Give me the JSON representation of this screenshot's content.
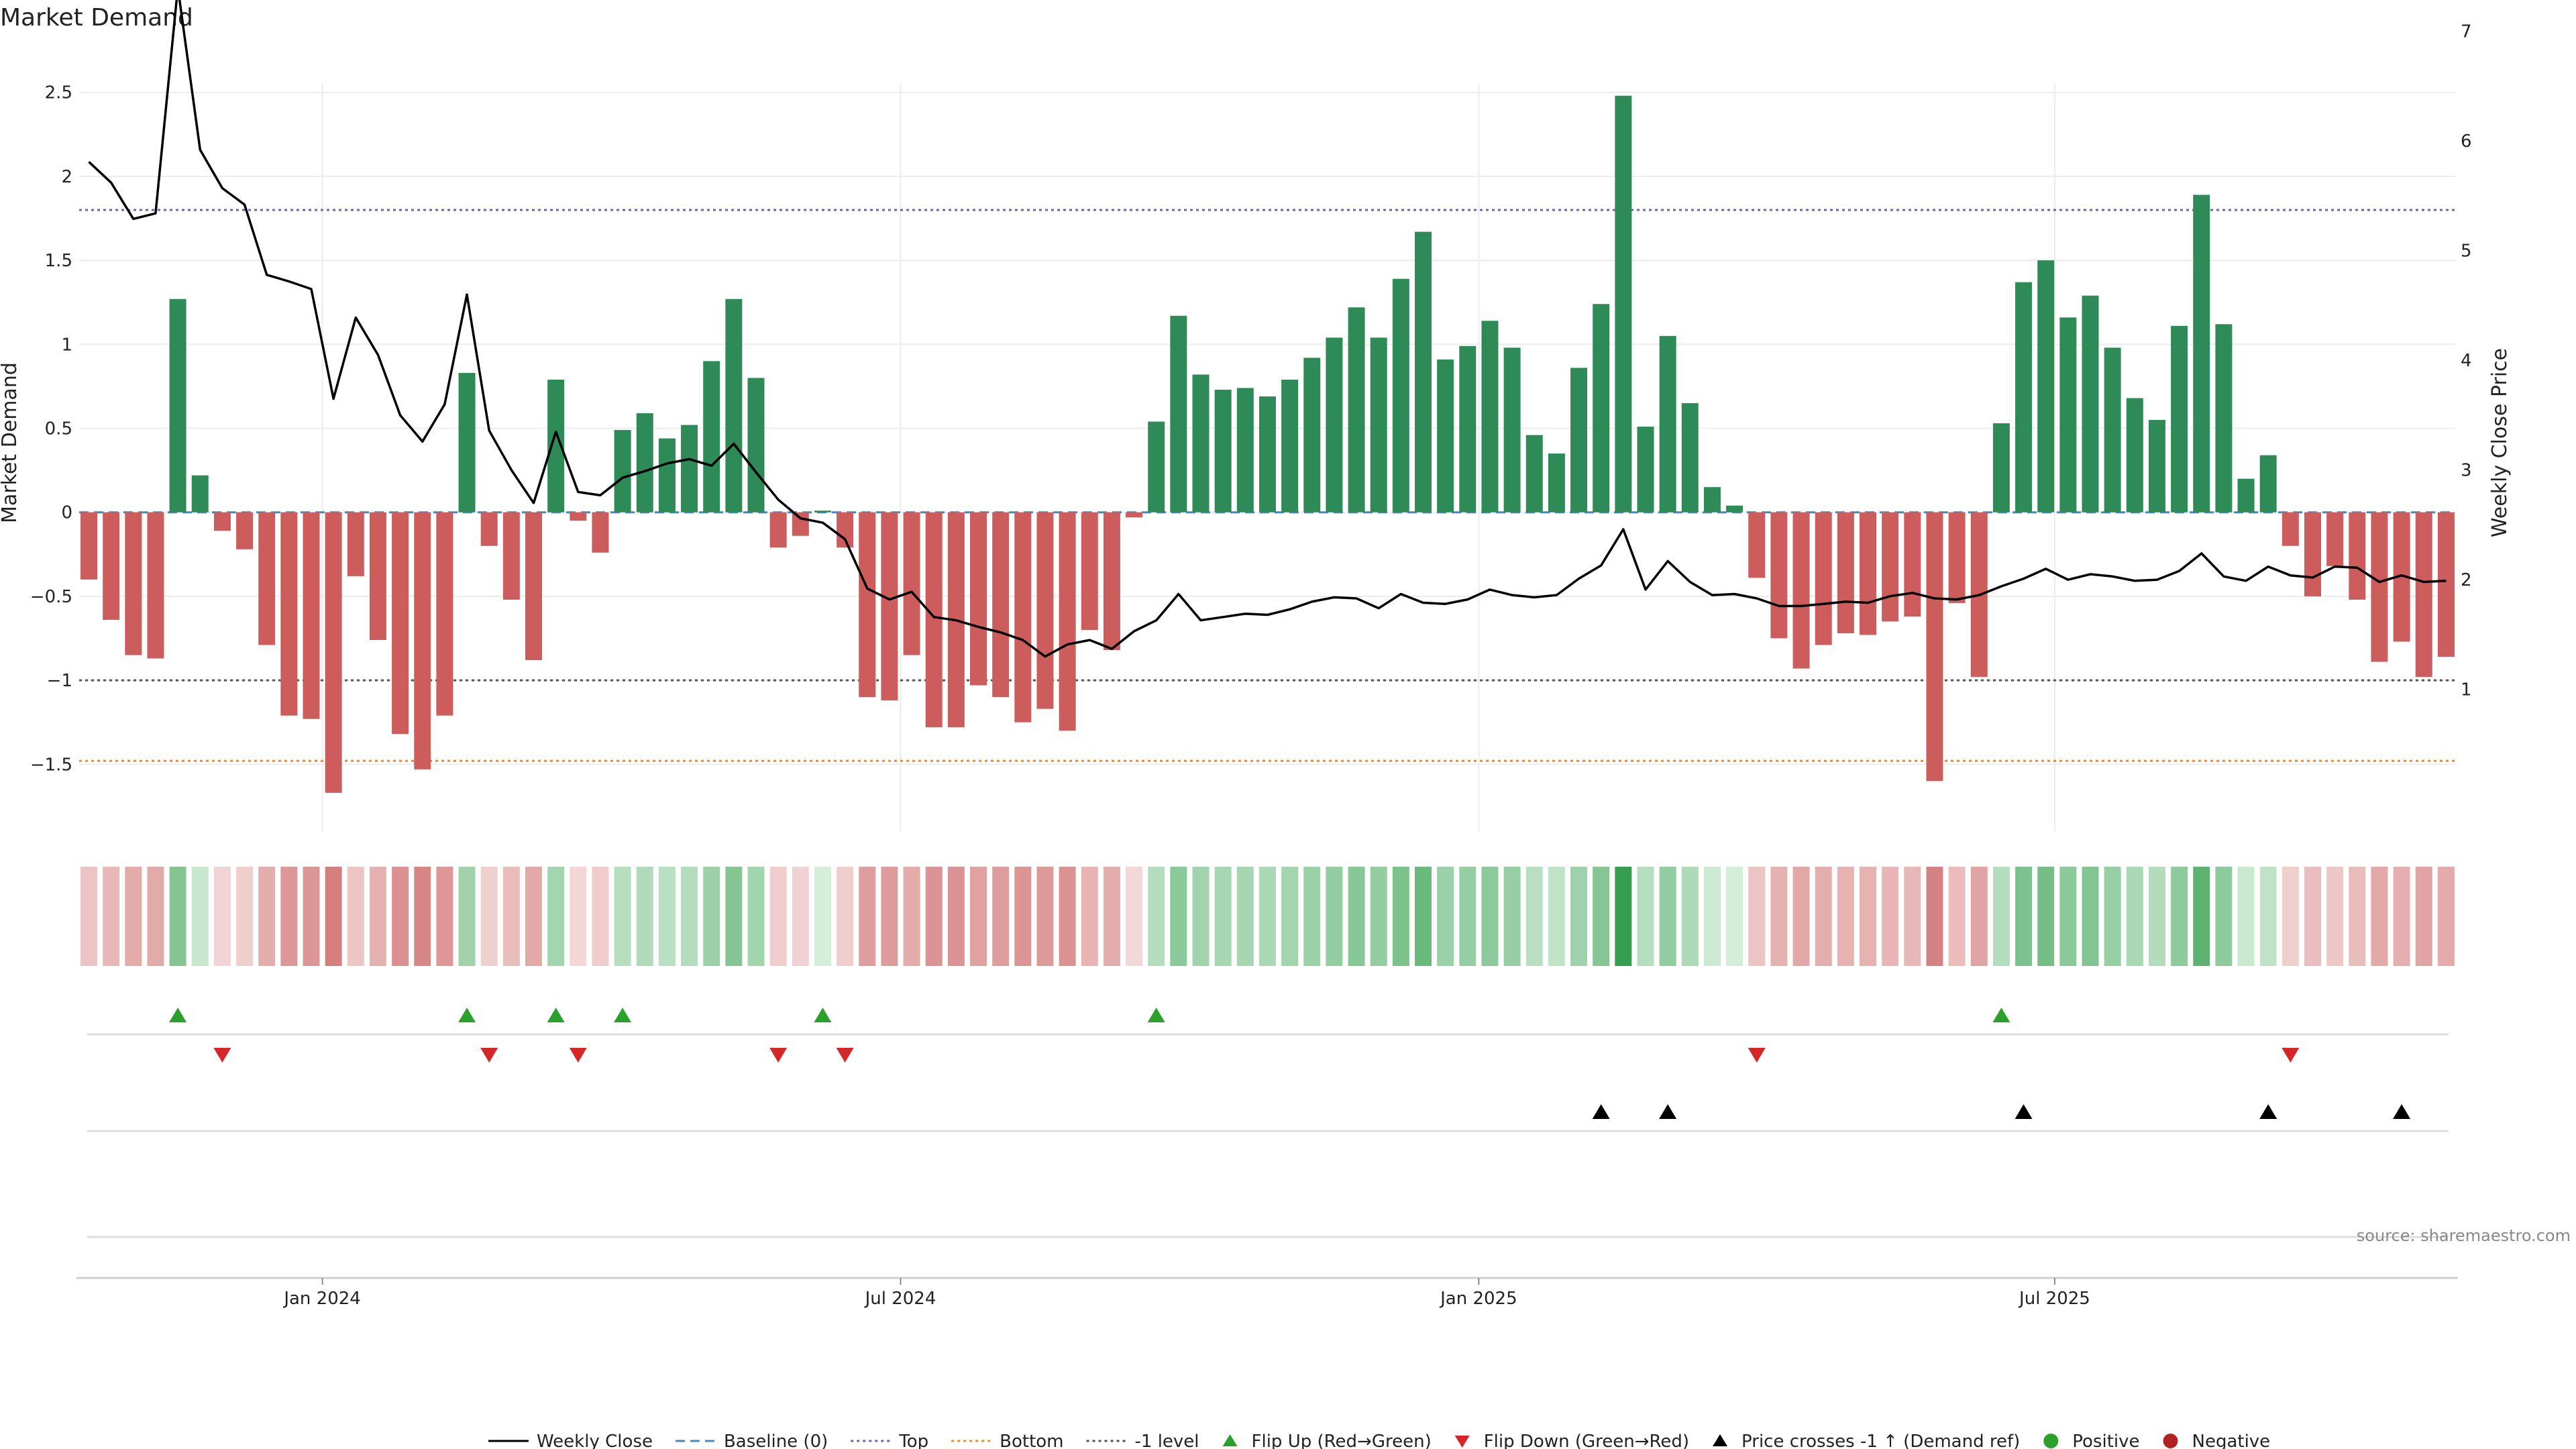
{
  "title": "Market Demand",
  "source_text": "source: sharemaestro.com",
  "colors": {
    "green": "#2e8b57",
    "red": "#cd5c5c",
    "price_line": "#000000",
    "top_line": "#6a64b8",
    "bottom_line": "#f08a24",
    "neg1_line": "#555555",
    "baseline": "#4b86b4",
    "flip_up": "#2ca02c",
    "flip_down": "#d62728",
    "cross_marker": "#000000",
    "positive_dot": "#2ca02c",
    "negative_dot": "#b22222"
  },
  "chart_data": {
    "type": "bar",
    "title": "Market Demand",
    "ylabel": "Market Demand",
    "y2label": "Weekly Close Price",
    "ylim": [
      -1.92,
      2.5
    ],
    "y2lim": [
      0.7,
      7.4
    ],
    "yticks": [
      2.5,
      2,
      1.5,
      1,
      0.5,
      0,
      -0.5,
      -1,
      -1.5
    ],
    "ytick_labels": [
      "2.5",
      "2",
      "1.5",
      "1",
      "0.5",
      "0",
      "−0.5",
      "−1",
      "−1.5"
    ],
    "y2ticks": [
      7,
      6,
      5,
      4,
      3,
      2,
      1
    ],
    "x_tick_labels": [
      {
        "label": "Jan 2024",
        "week": 10.5
      },
      {
        "label": "Jul 2024",
        "week": 36.5
      },
      {
        "label": "Jan 2025",
        "week": 62.5
      },
      {
        "label": "Jul 2025",
        "week": 88.4
      }
    ],
    "reference_lines": {
      "top": 1.8,
      "bottom": -1.48,
      "minus_one": -1.0,
      "baseline": 0
    },
    "demand": [
      -0.4,
      -0.64,
      -0.85,
      -0.87,
      1.27,
      0.22,
      -0.11,
      -0.22,
      -0.79,
      -1.21,
      -1.23,
      -1.67,
      -0.38,
      -0.76,
      -1.32,
      -1.53,
      -1.21,
      0.83,
      -0.2,
      -0.52,
      -0.88,
      0.79,
      -0.05,
      -0.24,
      0.49,
      0.59,
      0.44,
      0.52,
      0.9,
      1.27,
      0.8,
      -0.21,
      -0.14,
      0.01,
      -0.21,
      -1.1,
      -1.12,
      -0.85,
      -1.28,
      -1.28,
      -1.03,
      -1.1,
      -1.25,
      -1.17,
      -1.3,
      -0.7,
      -0.82,
      -0.03,
      0.54,
      1.17,
      0.82,
      0.73,
      0.74,
      0.69,
      0.79,
      0.92,
      1.04,
      1.22,
      1.04,
      1.39,
      1.67,
      0.91,
      0.99,
      1.14,
      0.98,
      0.46,
      0.35,
      0.86,
      1.24,
      2.48,
      0.51,
      1.05,
      0.65,
      0.15,
      0.04,
      -0.39,
      -0.75,
      -0.93,
      -0.79,
      -0.72,
      -0.73,
      -0.65,
      -0.62,
      -1.6,
      -0.54,
      -0.98,
      0.53,
      1.37,
      1.5,
      1.16,
      1.29,
      0.98,
      0.68,
      0.55,
      1.11,
      1.89,
      1.12,
      0.2,
      0.34,
      -0.2,
      -0.5,
      -0.32,
      -0.52,
      -0.89,
      -0.77,
      -0.98,
      -0.86
    ],
    "price": [
      5.81,
      5.62,
      5.29,
      5.34,
      7.4,
      5.92,
      5.57,
      5.42,
      4.78,
      4.72,
      4.65,
      3.65,
      4.39,
      4.05,
      3.5,
      3.26,
      3.6,
      4.6,
      3.36,
      3.0,
      2.7,
      3.35,
      2.8,
      2.77,
      2.93,
      2.99,
      3.06,
      3.1,
      3.04,
      3.24,
      2.98,
      2.73,
      2.56,
      2.52,
      2.37,
      1.92,
      1.82,
      1.89,
      1.66,
      1.63,
      1.57,
      1.52,
      1.45,
      1.3,
      1.41,
      1.45,
      1.37,
      1.53,
      1.63,
      1.87,
      1.63,
      1.66,
      1.69,
      1.68,
      1.73,
      1.8,
      1.84,
      1.83,
      1.74,
      1.87,
      1.79,
      1.78,
      1.82,
      1.91,
      1.86,
      1.84,
      1.86,
      2.01,
      2.13,
      2.46,
      1.91,
      2.17,
      1.98,
      1.86,
      1.87,
      1.83,
      1.76,
      1.76,
      1.78,
      1.8,
      1.79,
      1.85,
      1.88,
      1.83,
      1.82,
      1.86,
      1.94,
      2.01,
      2.1,
      2.0,
      2.05,
      2.03,
      1.99,
      2.0,
      2.08,
      2.24,
      2.03,
      1.99,
      2.12,
      2.04,
      2.02,
      2.12,
      2.11,
      1.98,
      2.04,
      1.98,
      1.99
    ],
    "flip_up_weeks": [
      4,
      17,
      21,
      24,
      33,
      48,
      86
    ],
    "flip_down_weeks": [
      6,
      18,
      22,
      31,
      34,
      75,
      99
    ],
    "price_cross_weeks": [
      68,
      71,
      87,
      98,
      104
    ]
  },
  "legend": [
    {
      "label": "Weekly Close",
      "marker": "solid-line",
      "color": "#000000"
    },
    {
      "label": "Baseline (0)",
      "marker": "dashed-line",
      "color": "#4b86b4"
    },
    {
      "label": "Top",
      "marker": "dotted-line",
      "color": "#6a64b8"
    },
    {
      "label": "Bottom",
      "marker": "dotted-line",
      "color": "#f08a24"
    },
    {
      "label": "-1 level",
      "marker": "dotted-line",
      "color": "#555555"
    },
    {
      "label": "Flip Up (Red→Green)",
      "marker": "triangle-up",
      "color": "#2ca02c"
    },
    {
      "label": "Flip Down (Green→Red)",
      "marker": "triangle-down",
      "color": "#d62728"
    },
    {
      "label": "Price crosses -1 ↑ (Demand ref)",
      "marker": "triangle-up",
      "color": "#000000"
    },
    {
      "label": "Positive",
      "marker": "dot",
      "color": "#2ca02c"
    },
    {
      "label": "Negative",
      "marker": "dot",
      "color": "#b22222"
    }
  ]
}
